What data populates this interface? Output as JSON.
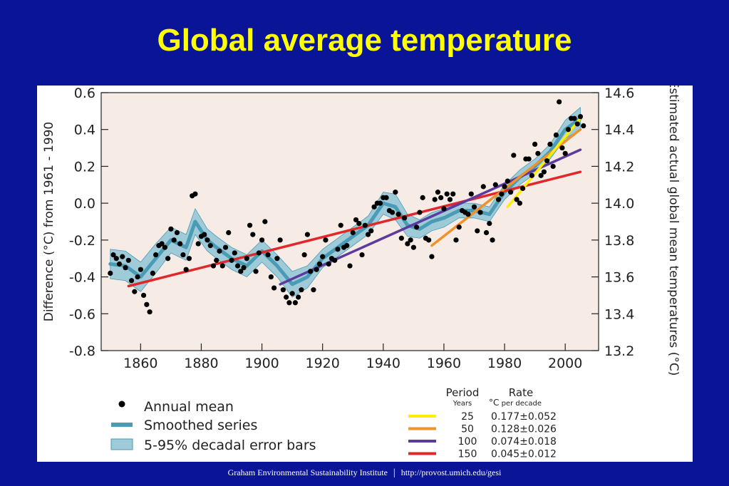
{
  "slide": {
    "title": "Global average temperature",
    "footer_institute": "Graham Environmental Sustainability Institute",
    "footer_separator": "|",
    "footer_url": "http://provost.umich.edu/gesi"
  },
  "chart_data": {
    "type": "line",
    "title": "",
    "ylabel_left": "Difference (°C) from 1961 - 1990",
    "ylabel_right": "Estimated actual global mean temperatures (°C)",
    "xlim": [
      1847,
      2011
    ],
    "ylim": [
      -0.8,
      0.6
    ],
    "ylim_right": [
      13.2,
      14.6
    ],
    "x_ticks": [
      "1860",
      "1880",
      "1900",
      "1920",
      "1940",
      "1960",
      "1980",
      "2000"
    ],
    "y_ticks_left": [
      "0.6",
      "0.4",
      "0.2",
      "0.0",
      "-0.2",
      "-0.4",
      "-0.6",
      "-0.8"
    ],
    "y_ticks_right": [
      "14.6",
      "14.4",
      "14.2",
      "14.0",
      "13.8",
      "13.6",
      "13.4",
      "13.2"
    ],
    "legend_left": {
      "annual_mean": "Annual mean",
      "smoothed": "Smoothed series",
      "error_bars": "5-95% decadal error bars"
    },
    "legend_right": {
      "period_header": "Period",
      "period_units": "Years",
      "rate_header": "Rate",
      "rate_units_symbol": "°C",
      "rate_units_text": "per decade"
    },
    "colors": {
      "annual_mean": "#000000",
      "smoothed": "#4a9bb5",
      "error_band": "#9fcbd8",
      "plot_background": "#f7ebe6",
      "trend_25": "#ffee00",
      "trend_50": "#f0912a",
      "trend_100": "#5c3a9e",
      "trend_150": "#e0282a"
    },
    "trends": [
      {
        "period": "25",
        "rate": "0.177±0.052",
        "color": "#ffee00",
        "x": [
          1981,
          2005
        ],
        "y": [
          -0.02,
          0.46
        ]
      },
      {
        "period": "50",
        "rate": "0.128±0.026",
        "color": "#f0912a",
        "x": [
          1956,
          2005
        ],
        "y": [
          -0.23,
          0.4
        ]
      },
      {
        "period": "100",
        "rate": "0.074±0.018",
        "color": "#5c3a9e",
        "x": [
          1906,
          2005
        ],
        "y": [
          -0.44,
          0.29
        ]
      },
      {
        "period": "150",
        "rate": "0.045±0.012",
        "color": "#e0282a",
        "x": [
          1856,
          2005
        ],
        "y": [
          -0.45,
          0.17
        ]
      }
    ],
    "annual_mean": {
      "x": [
        1850,
        1851,
        1852,
        1853,
        1854,
        1855,
        1856,
        1857,
        1858,
        1859,
        1860,
        1861,
        1862,
        1863,
        1864,
        1865,
        1866,
        1867,
        1868,
        1869,
        1870,
        1871,
        1872,
        1873,
        1874,
        1875,
        1876,
        1877,
        1878,
        1879,
        1880,
        1881,
        1882,
        1883,
        1884,
        1885,
        1886,
        1887,
        1888,
        1889,
        1890,
        1891,
        1892,
        1893,
        1894,
        1895,
        1896,
        1897,
        1898,
        1899,
        1900,
        1901,
        1902,
        1903,
        1904,
        1905,
        1906,
        1907,
        1908,
        1909,
        1910,
        1911,
        1912,
        1913,
        1914,
        1915,
        1916,
        1917,
        1918,
        1919,
        1920,
        1921,
        1922,
        1923,
        1924,
        1925,
        1926,
        1927,
        1928,
        1929,
        1930,
        1931,
        1932,
        1933,
        1934,
        1935,
        1936,
        1937,
        1938,
        1939,
        1940,
        1941,
        1942,
        1943,
        1944,
        1945,
        1946,
        1947,
        1948,
        1949,
        1950,
        1951,
        1952,
        1953,
        1954,
        1955,
        1956,
        1957,
        1958,
        1959,
        1960,
        1961,
        1962,
        1963,
        1964,
        1965,
        1966,
        1967,
        1968,
        1969,
        1970,
        1971,
        1972,
        1973,
        1974,
        1975,
        1976,
        1977,
        1978,
        1979,
        1980,
        1981,
        1982,
        1983,
        1984,
        1985,
        1986,
        1987,
        1988,
        1989,
        1990,
        1991,
        1992,
        1993,
        1994,
        1995,
        1996,
        1997,
        1998,
        1999,
        2000,
        2001,
        2002,
        2003,
        2004,
        2005,
        2006
      ],
      "y": [
        -0.38,
        -0.28,
        -0.3,
        -0.33,
        -0.29,
        -0.35,
        -0.31,
        -0.42,
        -0.48,
        -0.4,
        -0.36,
        -0.5,
        -0.55,
        -0.59,
        -0.38,
        -0.28,
        -0.23,
        -0.22,
        -0.24,
        -0.3,
        -0.14,
        -0.2,
        -0.16,
        -0.22,
        -0.28,
        -0.36,
        -0.3,
        0.04,
        0.05,
        -0.22,
        -0.18,
        -0.17,
        -0.2,
        -0.23,
        -0.34,
        -0.31,
        -0.26,
        -0.34,
        -0.24,
        -0.16,
        -0.31,
        -0.27,
        -0.34,
        -0.37,
        -0.35,
        -0.3,
        -0.12,
        -0.17,
        -0.37,
        -0.27,
        -0.2,
        -0.1,
        -0.28,
        -0.4,
        -0.46,
        -0.3,
        -0.2,
        -0.47,
        -0.51,
        -0.54,
        -0.49,
        -0.54,
        -0.51,
        -0.47,
        -0.28,
        -0.17,
        -0.37,
        -0.47,
        -0.36,
        -0.33,
        -0.29,
        -0.2,
        -0.33,
        -0.3,
        -0.31,
        -0.25,
        -0.12,
        -0.24,
        -0.23,
        -0.34,
        -0.16,
        -0.09,
        -0.11,
        -0.28,
        -0.12,
        -0.17,
        -0.15,
        -0.02,
        0.0,
        0.0,
        0.03,
        0.03,
        -0.04,
        -0.05,
        0.06,
        -0.06,
        -0.19,
        -0.08,
        -0.22,
        -0.2,
        -0.24,
        -0.13,
        -0.05,
        0.03,
        -0.19,
        -0.2,
        -0.29,
        0.02,
        0.06,
        0.03,
        -0.03,
        0.05,
        0.02,
        0.05,
        -0.2,
        -0.13,
        -0.04,
        -0.05,
        -0.06,
        0.05,
        -0.02,
        -0.15,
        -0.05,
        0.09,
        -0.16,
        -0.11,
        -0.2,
        0.1,
        0.02,
        0.05,
        0.09,
        0.12,
        0.06,
        0.26,
        0.02,
        0.0,
        0.08,
        0.24,
        0.24,
        0.15,
        0.32,
        0.27,
        0.15,
        0.17,
        0.23,
        0.32,
        0.2,
        0.37,
        0.55,
        0.3,
        0.27,
        0.4,
        0.46,
        0.46,
        0.43,
        0.47,
        0.42
      ]
    },
    "smoothed": {
      "x": [
        1850,
        1855,
        1860,
        1865,
        1870,
        1875,
        1878,
        1882,
        1885,
        1890,
        1895,
        1900,
        1905,
        1910,
        1915,
        1920,
        1925,
        1930,
        1935,
        1940,
        1944,
        1948,
        1952,
        1956,
        1960,
        1965,
        1970,
        1975,
        1980,
        1985,
        1990,
        1995,
        2000,
        2005
      ],
      "y": [
        -0.33,
        -0.34,
        -0.4,
        -0.3,
        -0.2,
        -0.24,
        -0.1,
        -0.2,
        -0.24,
        -0.3,
        -0.34,
        -0.26,
        -0.34,
        -0.44,
        -0.4,
        -0.3,
        -0.24,
        -0.18,
        -0.12,
        0.0,
        -0.02,
        -0.12,
        -0.14,
        -0.1,
        -0.08,
        -0.04,
        -0.04,
        -0.06,
        0.06,
        0.14,
        0.2,
        0.28,
        0.4,
        0.46
      ],
      "err": [
        0.08,
        0.08,
        0.08,
        0.08,
        0.07,
        0.07,
        0.07,
        0.06,
        0.06,
        0.06,
        0.06,
        0.06,
        0.06,
        0.07,
        0.06,
        0.05,
        0.05,
        0.05,
        0.05,
        0.06,
        0.07,
        0.06,
        0.05,
        0.05,
        0.05,
        0.04,
        0.04,
        0.04,
        0.04,
        0.04,
        0.04,
        0.04,
        0.05,
        0.06
      ]
    }
  }
}
